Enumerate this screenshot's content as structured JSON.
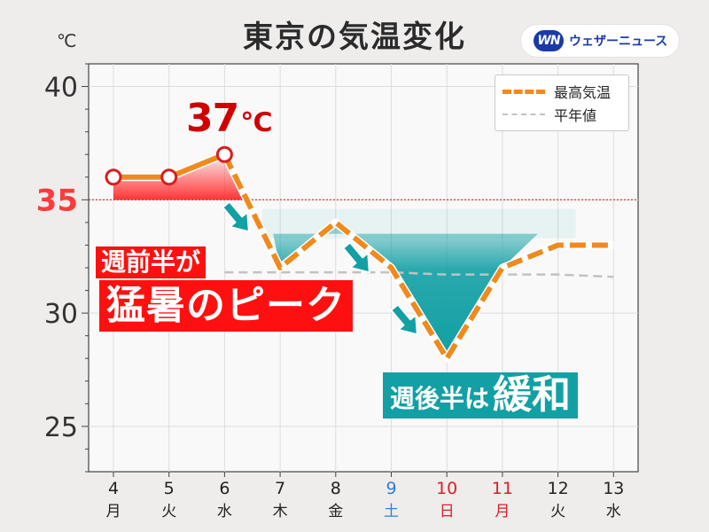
{
  "title": "東京の気温変化",
  "unit": "℃",
  "logo": {
    "mark": "WN",
    "text": "ウェザーニュース",
    "color": "#1a3aa6"
  },
  "legend": {
    "max_label": "最高気温",
    "normal_label": "平年値",
    "placement": "top-right"
  },
  "threshold": {
    "value": 35,
    "label": "35",
    "color": "#e02020"
  },
  "annotations": {
    "peak_value": "37",
    "peak_unit": "℃",
    "early_line1": "週前半が",
    "early_line2": "猛暑のピーク",
    "late_small": "週後半は",
    "late_big": "緩和"
  },
  "colors": {
    "max_line": "#f08a1e",
    "normal_line": "#c2c2c2",
    "hot_fill": "#ff3030",
    "cool_fill": "#12a0a4",
    "arrow": "#12a0a4",
    "saturday": "#2f7fd6",
    "sunday_holiday": "#d8202a"
  },
  "chart_data": {
    "type": "line",
    "title": "東京の気温変化",
    "ylabel": "℃",
    "ylim": [
      23,
      41
    ],
    "yticks": [
      25,
      30,
      35,
      40
    ],
    "grid": true,
    "categories": [
      {
        "day": "4",
        "weekday": "月",
        "kind": "weekday"
      },
      {
        "day": "5",
        "weekday": "火",
        "kind": "weekday"
      },
      {
        "day": "6",
        "weekday": "水",
        "kind": "weekday"
      },
      {
        "day": "7",
        "weekday": "木",
        "kind": "weekday"
      },
      {
        "day": "8",
        "weekday": "金",
        "kind": "weekday"
      },
      {
        "day": "9",
        "weekday": "土",
        "kind": "saturday"
      },
      {
        "day": "10",
        "weekday": "日",
        "kind": "sunday"
      },
      {
        "day": "11",
        "weekday": "月",
        "kind": "holiday"
      },
      {
        "day": "12",
        "weekday": "火",
        "kind": "weekday"
      },
      {
        "day": "13",
        "weekday": "水",
        "kind": "weekday"
      }
    ],
    "series": [
      {
        "name": "最高気温",
        "values": [
          36,
          36,
          37,
          32,
          34,
          32,
          28,
          32,
          33,
          33
        ],
        "observed": 3
      },
      {
        "name": "平年値",
        "values": [
          null,
          null,
          31.8,
          31.8,
          31.8,
          31.8,
          31.7,
          31.7,
          31.7,
          31.6
        ]
      }
    ],
    "threshold": 35
  }
}
